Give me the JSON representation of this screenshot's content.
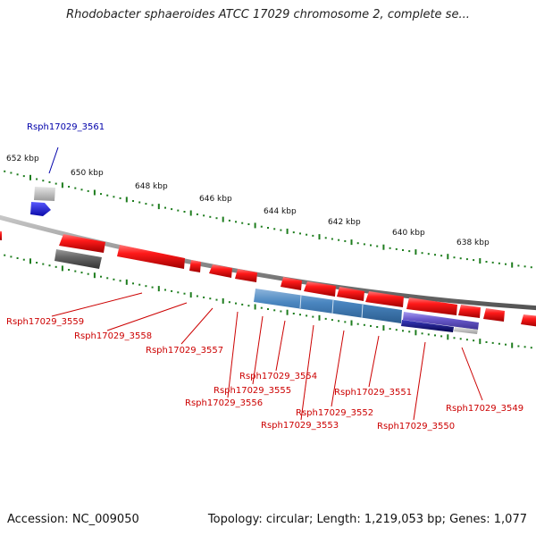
{
  "title": "Rhodobacter sphaeroides ATCC 17029 chromosome 2, complete se...",
  "footer": {
    "accession": "Accession: NC_009050",
    "summary": "Topology: circular; Length: 1,219,053 bp; Genes: 1,077"
  },
  "colors": {
    "forward_gene": "#ee1111",
    "reverse_gene_blue": "#4a86c0",
    "gene_purple": "#6a5acd",
    "gene_navy": "#0a0a8a",
    "pseudo_gray": "#666666",
    "light_gray": "#c8c8c8",
    "selected_blue": "#1515e0",
    "tick_green": "#1e7d1e",
    "backbone": "#888888",
    "forward_label": "#cc0000",
    "highlight_label": "#0000aa"
  },
  "scale": {
    "tick_labels": [
      "652 kbp",
      "650 kbp",
      "648 kbp",
      "646 kbp",
      "644 kbp",
      "642 kbp",
      "640 kbp",
      "638 kbp"
    ]
  },
  "genes": [
    "Rsph17029_3561",
    "Rsph17029_3559",
    "Rsph17029_3558",
    "Rsph17029_3557",
    "Rsph17029_3556",
    "Rsph17029_3555",
    "Rsph17029_3554",
    "Rsph17029_3553",
    "Rsph17029_3552",
    "Rsph17029_3551",
    "Rsph17029_3550",
    "Rsph17029_3549"
  ]
}
